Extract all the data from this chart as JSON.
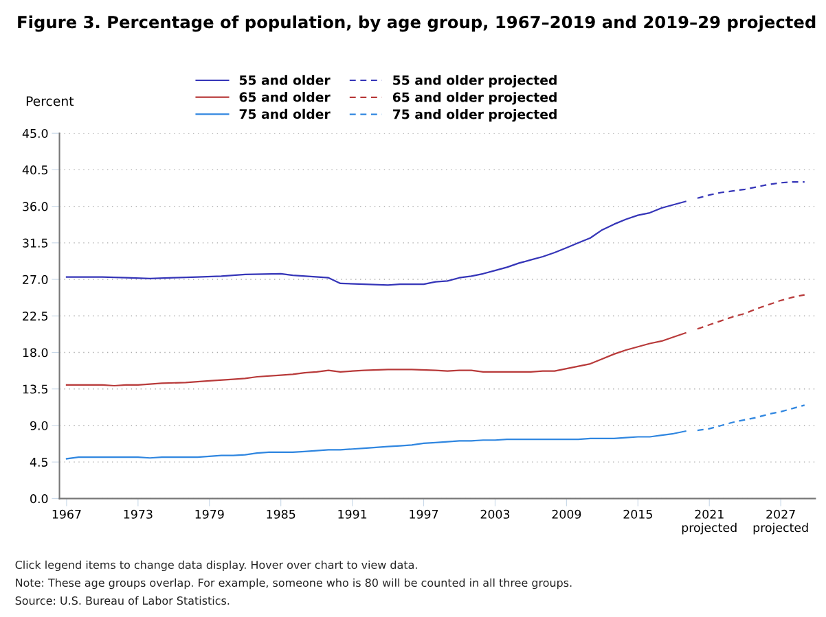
{
  "chart_data": {
    "type": "line",
    "title": "Figure 3. Percentage of population, by age group, 1967–2019 and 2019–29 projected",
    "ylabel": "Percent",
    "series": [
      {
        "name": "55 and older",
        "color": "#3535b8",
        "line_style": "solid",
        "x": [
          1967,
          1970,
          1972,
          1974,
          1976,
          1978,
          1980,
          1982,
          1985,
          1986,
          1989,
          1990,
          1992,
          1994,
          1995,
          1997,
          1998,
          1999,
          2000,
          2001,
          2002,
          2003,
          2004,
          2005,
          2006,
          2007,
          2008,
          2009,
          2010,
          2011,
          2012,
          2013,
          2014,
          2015,
          2016,
          2017,
          2018,
          2019
        ],
        "values": [
          27.3,
          27.3,
          27.2,
          27.1,
          27.2,
          27.3,
          27.4,
          27.6,
          27.7,
          27.5,
          27.2,
          26.5,
          26.4,
          26.3,
          26.4,
          26.4,
          26.7,
          26.8,
          27.2,
          27.4,
          27.7,
          28.1,
          28.5,
          29.0,
          29.4,
          29.8,
          30.3,
          30.9,
          31.5,
          32.1,
          33.1,
          33.8,
          34.4,
          34.9,
          35.2,
          35.8,
          36.2,
          36.6
        ]
      },
      {
        "name": "55 and older projected",
        "color": "#3535b8",
        "line_style": "dashed",
        "x": [
          2020,
          2021,
          2022,
          2023,
          2024,
          2025,
          2026,
          2027,
          2028,
          2029
        ],
        "values": [
          37.0,
          37.4,
          37.7,
          37.9,
          38.1,
          38.4,
          38.7,
          38.9,
          39.0,
          39.0
        ]
      },
      {
        "name": "65 and older",
        "color": "#b83a3a",
        "line_style": "solid",
        "x": [
          1967,
          1970,
          1971,
          1972,
          1973,
          1975,
          1977,
          1979,
          1981,
          1982,
          1983,
          1985,
          1986,
          1987,
          1988,
          1989,
          1990,
          1991,
          1992,
          1994,
          1996,
          1998,
          1999,
          2000,
          2001,
          2002,
          2006,
          2007,
          2008,
          2009,
          2010,
          2011,
          2012,
          2013,
          2014,
          2015,
          2016,
          2017,
          2018,
          2019
        ],
        "values": [
          14.0,
          14.0,
          13.9,
          14.0,
          14.0,
          14.2,
          14.3,
          14.5,
          14.7,
          14.8,
          15.0,
          15.2,
          15.3,
          15.5,
          15.6,
          15.8,
          15.6,
          15.7,
          15.8,
          15.9,
          15.9,
          15.8,
          15.7,
          15.8,
          15.8,
          15.6,
          15.6,
          15.7,
          15.7,
          16.0,
          16.3,
          16.6,
          17.2,
          17.8,
          18.3,
          18.7,
          19.1,
          19.4,
          19.9,
          20.4
        ]
      },
      {
        "name": "65 and older projected",
        "color": "#b83a3a",
        "line_style": "dashed",
        "x": [
          2020,
          2021,
          2022,
          2023,
          2024,
          2025,
          2026,
          2027,
          2028,
          2029
        ],
        "values": [
          20.9,
          21.4,
          21.9,
          22.4,
          22.8,
          23.4,
          23.9,
          24.4,
          24.8,
          25.1
        ]
      },
      {
        "name": "75 and older",
        "color": "#2f86e0",
        "line_style": "solid",
        "x": [
          1967,
          1968,
          1973,
          1974,
          1975,
          1978,
          1979,
          1980,
          1981,
          1982,
          1983,
          1984,
          1986,
          1987,
          1988,
          1989,
          1990,
          1991,
          1992,
          1993,
          1994,
          1995,
          1996,
          1997,
          1998,
          1999,
          2000,
          2001,
          2002,
          2003,
          2004,
          2010,
          2011,
          2013,
          2014,
          2015,
          2016,
          2017,
          2018,
          2019
        ],
        "values": [
          4.9,
          5.1,
          5.1,
          5.0,
          5.1,
          5.1,
          5.2,
          5.3,
          5.3,
          5.4,
          5.6,
          5.7,
          5.7,
          5.8,
          5.9,
          6.0,
          6.0,
          6.1,
          6.2,
          6.3,
          6.4,
          6.5,
          6.6,
          6.8,
          6.9,
          7.0,
          7.1,
          7.1,
          7.2,
          7.2,
          7.3,
          7.3,
          7.4,
          7.4,
          7.5,
          7.6,
          7.6,
          7.8,
          8.0,
          8.3
        ]
      },
      {
        "name": "75 and older projected",
        "color": "#2f86e0",
        "line_style": "dashed",
        "x": [
          2020,
          2021,
          2022,
          2023,
          2024,
          2025,
          2026,
          2027,
          2028,
          2029
        ],
        "values": [
          8.4,
          8.6,
          9.0,
          9.4,
          9.7,
          10.0,
          10.4,
          10.7,
          11.1,
          11.5
        ]
      }
    ],
    "xlim": [
      1966.4,
      2029.9
    ],
    "xticks": [
      1967,
      1973,
      1979,
      1985,
      1991,
      1997,
      2003,
      2009,
      2015,
      {
        "value": 2021,
        "label": "2021\nprojected"
      },
      {
        "value": 2027,
        "label": "2027\nprojected"
      }
    ],
    "ylim": [
      0,
      45
    ],
    "yticks": [
      {
        "value": 0,
        "label": "0.0"
      },
      {
        "value": 4.5,
        "label": "4.5"
      },
      {
        "value": 9,
        "label": "9.0"
      },
      {
        "value": 13.5,
        "label": "13.5"
      },
      {
        "value": 18,
        "label": "18.0"
      },
      {
        "value": 22.5,
        "label": "22.5"
      },
      {
        "value": 27,
        "label": "27.0"
      },
      {
        "value": 31.5,
        "label": "31.5"
      },
      {
        "value": 36,
        "label": "36.0"
      },
      {
        "value": 40.5,
        "label": "40.5"
      },
      {
        "value": 45,
        "label": "45.0"
      }
    ],
    "grid": "y",
    "legend": "top",
    "marker": "none",
    "annotations": [
      "Click legend items to change data display. Hover over chart to view data.",
      "Note: These age groups overlap. For example, someone who is 80 will be counted in all three groups.",
      "Source: U.S. Bureau of Labor Statistics."
    ]
  }
}
